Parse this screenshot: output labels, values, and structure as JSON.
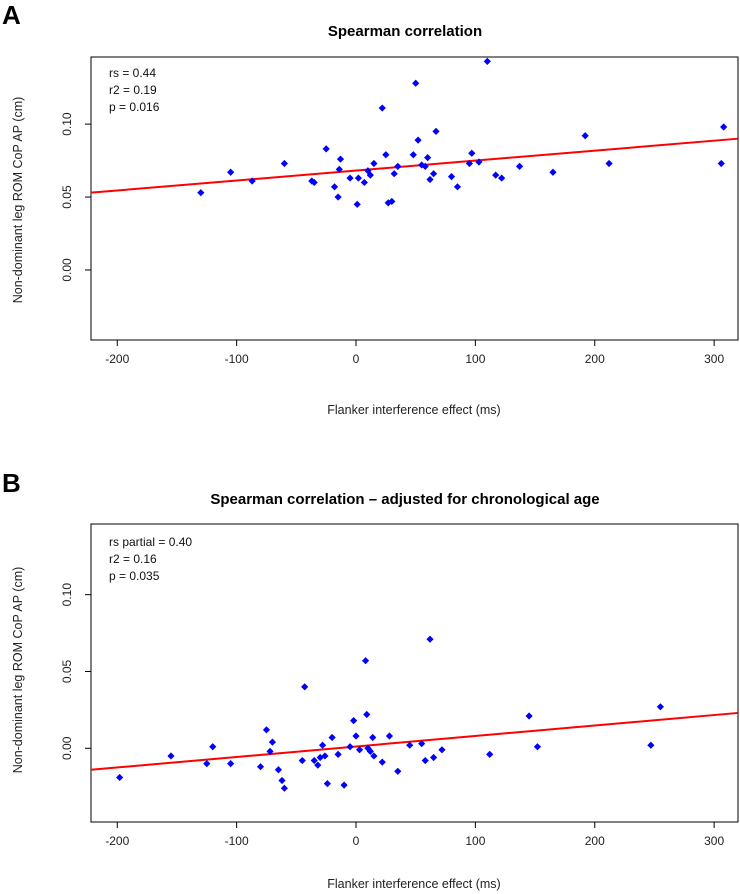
{
  "chart_data": [
    {
      "type": "scatter",
      "panel_label": "A",
      "title": "Spearman correlation",
      "xlabel": "Flanker interference effect (ms)",
      "ylabel": "Non-dominant leg ROM CoP AP (cm)",
      "xlim": [
        -222,
        320
      ],
      "ylim": [
        -0.048,
        0.146
      ],
      "xticks": [
        -200,
        -100,
        0,
        100,
        200,
        300
      ],
      "xtick_labels": [
        "-200",
        "-100",
        "0",
        "100",
        "200",
        "300"
      ],
      "yticks": [
        0.0,
        0.05,
        0.1
      ],
      "ytick_labels": [
        "0.00",
        "0.05",
        "0.10"
      ],
      "annotations": [
        "rs = 0.44",
        "r2 = 0.19",
        "p = 0.016"
      ],
      "fit_line": {
        "x": [
          -222,
          320
        ],
        "y": [
          0.053,
          0.09
        ],
        "color": "#ff0000"
      },
      "point_color": "#0000ff",
      "points": [
        [
          -130,
          0.053
        ],
        [
          -105,
          0.067
        ],
        [
          -87,
          0.061
        ],
        [
          -60,
          0.073
        ],
        [
          -37,
          0.061
        ],
        [
          -35,
          0.06
        ],
        [
          -25,
          0.083
        ],
        [
          -18,
          0.057
        ],
        [
          -15,
          0.05
        ],
        [
          -14,
          0.069
        ],
        [
          -13,
          0.076
        ],
        [
          -5,
          0.063
        ],
        [
          1,
          0.045
        ],
        [
          2,
          0.063
        ],
        [
          7,
          0.06
        ],
        [
          10,
          0.068
        ],
        [
          12,
          0.065
        ],
        [
          15,
          0.073
        ],
        [
          22,
          0.111
        ],
        [
          25,
          0.079
        ],
        [
          27,
          0.046
        ],
        [
          30,
          0.047
        ],
        [
          32,
          0.066
        ],
        [
          35,
          0.071
        ],
        [
          48,
          0.079
        ],
        [
          50,
          0.128
        ],
        [
          52,
          0.089
        ],
        [
          55,
          0.072
        ],
        [
          58,
          0.071
        ],
        [
          60,
          0.077
        ],
        [
          62,
          0.062
        ],
        [
          65,
          0.066
        ],
        [
          67,
          0.095
        ],
        [
          80,
          0.064
        ],
        [
          85,
          0.057
        ],
        [
          95,
          0.073
        ],
        [
          97,
          0.08
        ],
        [
          103,
          0.074
        ],
        [
          110,
          0.143
        ],
        [
          117,
          0.065
        ],
        [
          122,
          0.063
        ],
        [
          137,
          0.071
        ],
        [
          165,
          0.067
        ],
        [
          192,
          0.092
        ],
        [
          212,
          0.073
        ],
        [
          306,
          0.073
        ],
        [
          308,
          0.098
        ]
      ]
    },
    {
      "type": "scatter",
      "panel_label": "B",
      "title": "Spearman correlation – adjusted for chronological age",
      "xlabel": "Flanker interference effect (ms)",
      "ylabel": "Non-dominant leg ROM CoP AP (cm)",
      "xlim": [
        -222,
        320
      ],
      "ylim": [
        -0.048,
        0.146
      ],
      "xticks": [
        -200,
        -100,
        0,
        100,
        200,
        300
      ],
      "xtick_labels": [
        "-200",
        "-100",
        "0",
        "100",
        "200",
        "300"
      ],
      "yticks": [
        0.0,
        0.05,
        0.1
      ],
      "ytick_labels": [
        "0.00",
        "0.05",
        "0.10"
      ],
      "annotations": [
        "rs partial = 0.40",
        "r2 = 0.16",
        "p = 0.035"
      ],
      "fit_line": {
        "x": [
          -222,
          320
        ],
        "y": [
          -0.014,
          0.023
        ],
        "color": "#ff0000"
      },
      "point_color": "#0000ff",
      "points": [
        [
          -198,
          -0.019
        ],
        [
          -155,
          -0.005
        ],
        [
          -125,
          -0.01
        ],
        [
          -120,
          0.001
        ],
        [
          -105,
          -0.01
        ],
        [
          -80,
          -0.012
        ],
        [
          -75,
          0.012
        ],
        [
          -72,
          -0.002
        ],
        [
          -70,
          0.004
        ],
        [
          -65,
          -0.014
        ],
        [
          -62,
          -0.021
        ],
        [
          -60,
          -0.026
        ],
        [
          -45,
          -0.008
        ],
        [
          -43,
          0.04
        ],
        [
          -35,
          -0.008
        ],
        [
          -32,
          -0.011
        ],
        [
          -30,
          -0.006
        ],
        [
          -28,
          0.002
        ],
        [
          -26,
          -0.005
        ],
        [
          -24,
          -0.023
        ],
        [
          -20,
          0.007
        ],
        [
          -15,
          -0.004
        ],
        [
          -10,
          -0.024
        ],
        [
          -5,
          0.001
        ],
        [
          -2,
          0.018
        ],
        [
          0,
          0.008
        ],
        [
          3,
          -0.001
        ],
        [
          8,
          0.057
        ],
        [
          9,
          0.022
        ],
        [
          10,
          0.0
        ],
        [
          12,
          -0.002
        ],
        [
          14,
          0.007
        ],
        [
          15,
          -0.005
        ],
        [
          22,
          -0.009
        ],
        [
          28,
          0.008
        ],
        [
          35,
          -0.015
        ],
        [
          45,
          0.002
        ],
        [
          55,
          0.003
        ],
        [
          58,
          -0.008
        ],
        [
          62,
          0.071
        ],
        [
          65,
          -0.006
        ],
        [
          72,
          -0.001
        ],
        [
          112,
          -0.004
        ],
        [
          145,
          0.021
        ],
        [
          152,
          0.001
        ],
        [
          247,
          0.002
        ],
        [
          255,
          0.027
        ]
      ]
    }
  ]
}
